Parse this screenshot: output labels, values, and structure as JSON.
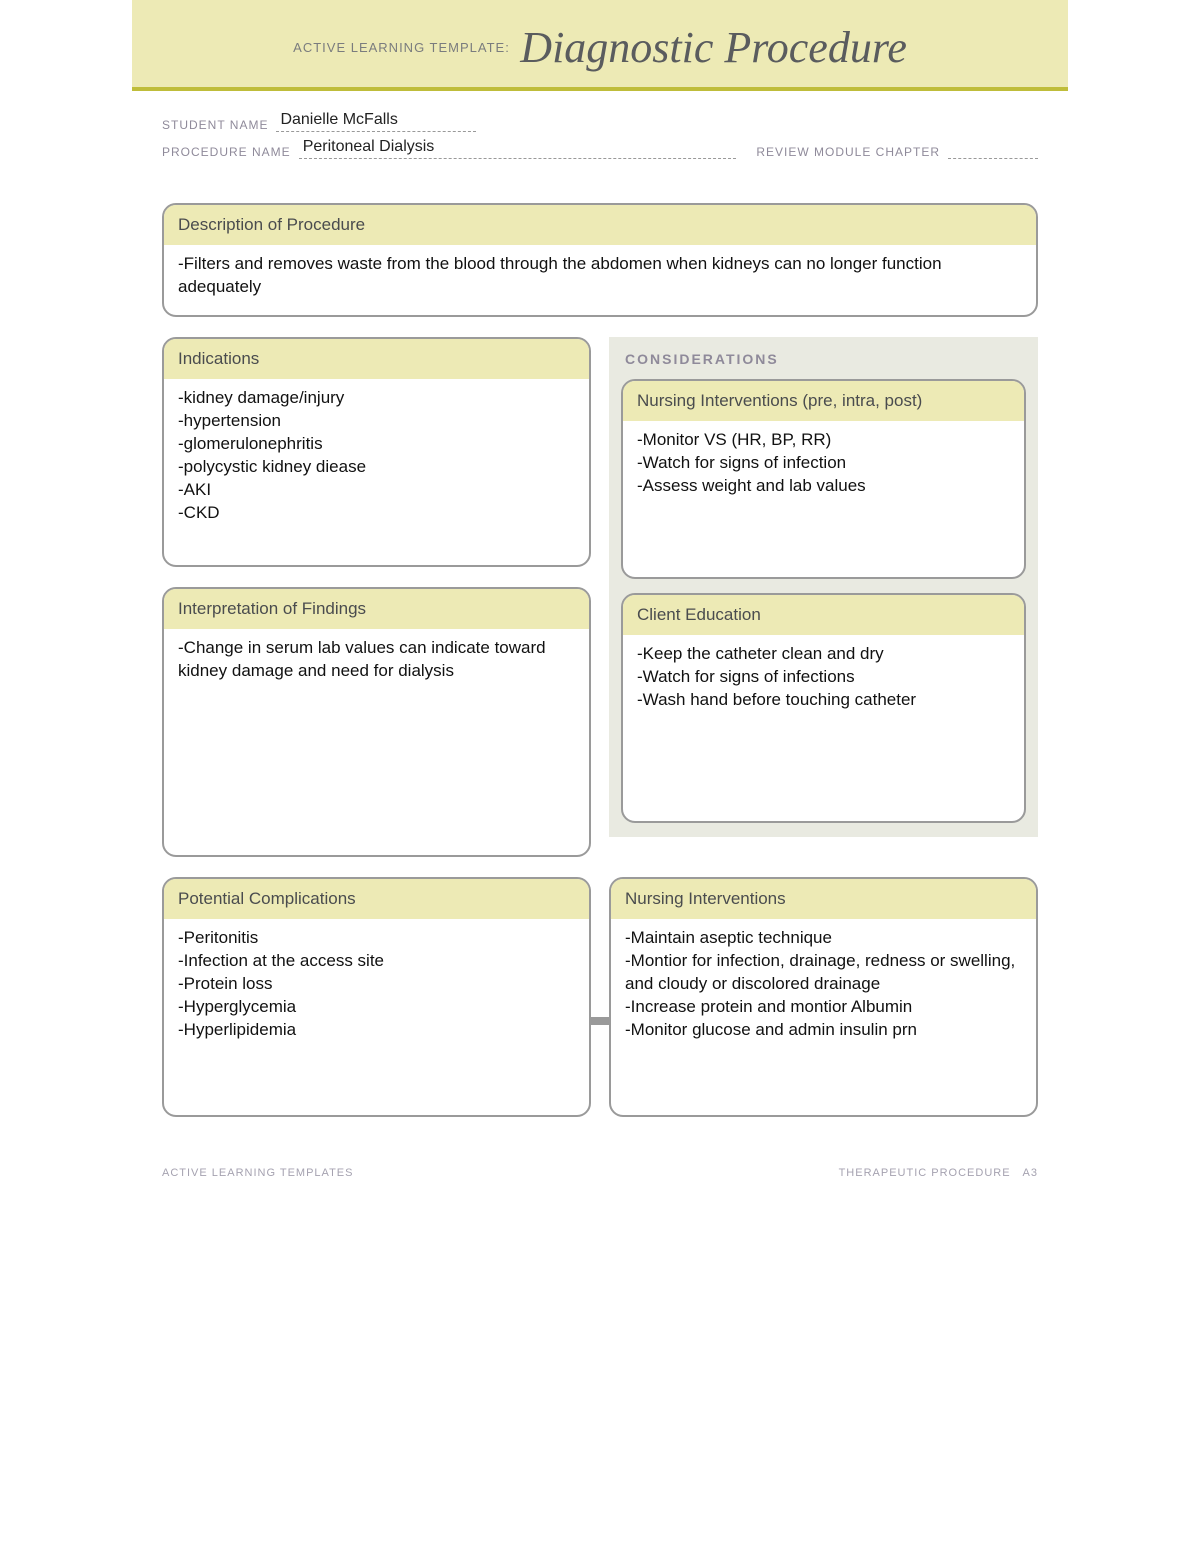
{
  "header": {
    "prefix": "ACTIVE LEARNING TEMPLATE:",
    "title": "Diagnostic Procedure"
  },
  "meta": {
    "student_label": "STUDENT NAME",
    "student_value": "Danielle McFalls",
    "procedure_label": "PROCEDURE NAME",
    "procedure_value": "Peritoneal Dialysis",
    "chapter_label": "REVIEW MODULE CHAPTER",
    "chapter_value": ""
  },
  "description": {
    "title": "Description of Procedure",
    "lines": [
      "-Filters and removes waste from the blood through the abdomen when kidneys can no longer function adequately"
    ]
  },
  "indications": {
    "title": "Indications",
    "lines": [
      "-kidney damage/injury",
      "-hypertension",
      "-glomerulonephritis",
      "-polycystic kidney diease",
      "-AKI",
      "-CKD"
    ]
  },
  "interpretation": {
    "title": "Interpretation of Findings",
    "lines": [
      "-Change in serum lab values can indicate toward kidney damage and need for dialysis"
    ]
  },
  "considerations_label": "CONSIDERATIONS",
  "nursing_pre": {
    "title": "Nursing Interventions (pre, intra, post)",
    "lines": [
      "-Monitor VS (HR, BP, RR)",
      "-Watch for signs of infection",
      "-Assess weight and lab values"
    ]
  },
  "education": {
    "title": "Client Education",
    "lines": [
      "-Keep the catheter clean and dry",
      "-Watch for signs of infections",
      "-Wash hand before touching catheter"
    ]
  },
  "complications": {
    "title": "Potential Complications",
    "lines": [
      "-Peritonitis",
      "-Infection at the access site",
      "-Protein loss",
      "-Hyperglycemia",
      "-Hyperlipidemia"
    ]
  },
  "nursing_post": {
    "title": "Nursing Interventions",
    "lines": [
      "-Maintain aseptic technique",
      "-Montior for infection, drainage, redness or swelling, and cloudy or discolored drainage",
      "-Increase protein and montior Albumin",
      "-Monitor glucose and admin insulin prn"
    ]
  },
  "footer": {
    "left": "ACTIVE LEARNING TEMPLATES",
    "right": "THERAPEUTIC PROCEDURE A3"
  },
  "colors": {
    "band_bg": "#edeab5",
    "rule": "#bfbd3a",
    "border": "#9a9a9a",
    "consider_bg": "#e9eae1"
  }
}
